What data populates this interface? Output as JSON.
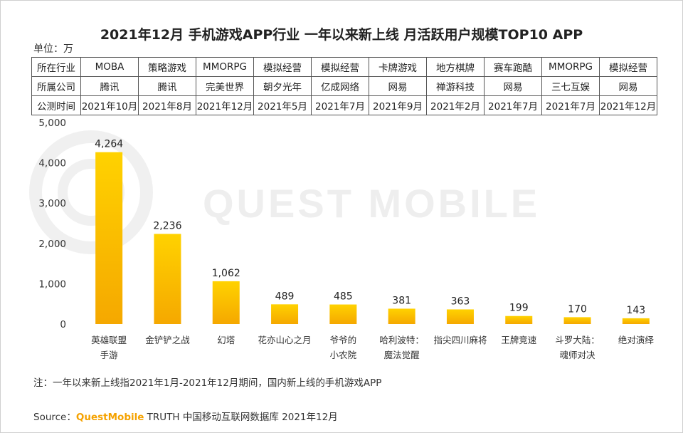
{
  "title": "2021年12月 手机游戏APP行业 一年以来新上线 月活跃用户规模TOP10 APP",
  "unit": "单位：万",
  "watermark": "QUEST MOBILE",
  "info_table": {
    "row_headers": [
      "所在行业",
      "所属公司",
      "公测时间"
    ],
    "industry": [
      "MOBA",
      "策略游戏",
      "MMORPG",
      "模拟经营",
      "模拟经营",
      "卡牌游戏",
      "地方棋牌",
      "赛车跑酷",
      "MMORPG",
      "模拟经营"
    ],
    "company": [
      "腾讯",
      "腾讯",
      "完美世界",
      "朝夕光年",
      "亿成网络",
      "网易",
      "禅游科技",
      "网易",
      "三七互娱",
      "网易"
    ],
    "launch": [
      "2021年10月",
      "2021年8月",
      "2021年12月",
      "2021年5月",
      "2021年7月",
      "2021年9月",
      "2021年2月",
      "2021年7月",
      "2021年7月",
      "2021年12月"
    ]
  },
  "chart_data": {
    "type": "bar",
    "title": "2021年12月 手机游戏APP行业 一年以来新上线 月活跃用户规模TOP10 APP",
    "ylabel": "单位：万",
    "categories": [
      [
        "英雄联盟",
        "手游"
      ],
      [
        "金铲铲之战"
      ],
      [
        "幻塔"
      ],
      [
        "花亦山心之月"
      ],
      [
        "爷爷的",
        "小农院"
      ],
      [
        "哈利波特：",
        "魔法觉醒"
      ],
      [
        "指尖四川麻将"
      ],
      [
        "王牌竞速"
      ],
      [
        "斗罗大陆：",
        "魂师对决"
      ],
      [
        "绝对演绎"
      ]
    ],
    "values": [
      4264,
      2236,
      1062,
      489,
      485,
      381,
      363,
      199,
      170,
      143
    ],
    "value_labels": [
      "4,264",
      "2,236",
      "1,062",
      "489",
      "485",
      "381",
      "363",
      "199",
      "170",
      "143"
    ],
    "ylim": [
      0,
      5000
    ],
    "yticks": [
      0,
      1000,
      2000,
      3000,
      4000,
      5000
    ],
    "ytick_labels": [
      "0",
      "1,000",
      "2,000",
      "3,000",
      "4,000",
      "5,000"
    ],
    "grid": false,
    "legend": "none",
    "bar_color_top": "#ffd200",
    "bar_color_bottom": "#f5a800"
  },
  "note": "注：一年以来新上线指2021年1月-2021年12月期间，国内新上线的手机游戏APP",
  "source": {
    "prefix": "Source：",
    "brand": "QuestMobile",
    "suffix": " TRUTH 中国移动互联网数据库 2021年12月"
  }
}
